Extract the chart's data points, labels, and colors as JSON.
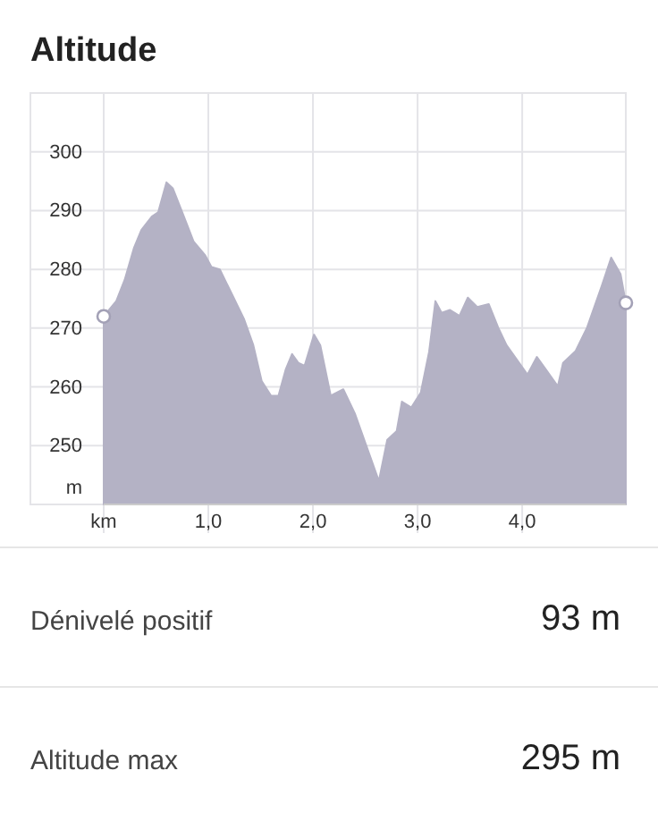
{
  "chart_data": {
    "type": "area",
    "title": "Altitude",
    "ylabel": "m",
    "xlim": [
      0,
      4.99
    ],
    "ylim": [
      240,
      310
    ],
    "xticks": [
      {
        "value": 0,
        "label": "km"
      },
      {
        "value": 1,
        "label": "1,0"
      },
      {
        "value": 2,
        "label": "2,0"
      },
      {
        "value": 3,
        "label": "3,0"
      },
      {
        "value": 4,
        "label": "4,0"
      }
    ],
    "yticks": [
      250,
      260,
      270,
      280,
      290,
      300
    ],
    "grid": true,
    "series": [
      {
        "color": "#b4b2c5",
        "x": [
          0,
          0.12,
          0.2,
          0.29,
          0.36,
          0.46,
          0.52,
          0.6,
          0.66,
          0.74,
          0.86,
          0.97,
          1.03,
          1.11,
          1.23,
          1.34,
          1.43,
          1.51,
          1.6,
          1.67,
          1.74,
          1.8,
          1.86,
          1.92,
          2.01,
          2.07,
          2.17,
          2.29,
          2.4,
          2.51,
          2.63,
          2.71,
          2.8,
          2.85,
          2.94,
          3.03,
          3.11,
          3.17,
          3.23,
          3.31,
          3.4,
          3.48,
          3.57,
          3.68,
          3.77,
          3.85,
          3.97,
          4.05,
          4.14,
          4.22,
          4.34,
          4.39,
          4.51,
          4.62,
          4.76,
          4.85,
          4.94,
          4.99
        ],
        "values": [
          272,
          274.6,
          278.2,
          283.7,
          286.7,
          289,
          289.7,
          294.8,
          293.8,
          290.2,
          284.7,
          282.4,
          280.4,
          280,
          275.6,
          271.6,
          267.1,
          261,
          258.5,
          258.5,
          263,
          265.6,
          264.1,
          263.6,
          268.9,
          267.1,
          258.5,
          259.6,
          255.5,
          250,
          244,
          251,
          252.5,
          257.5,
          256.5,
          259,
          266,
          274.6,
          272.6,
          273.1,
          272.1,
          275.2,
          273.6,
          274.1,
          270.1,
          267.1,
          264.1,
          262.1,
          265.1,
          263.1,
          260.1,
          264.1,
          266.1,
          270.1,
          277.2,
          282,
          279.2,
          274.3
        ]
      },
      {
        "type": "scatter",
        "color": "#ffffff",
        "marker": "circle",
        "x": [
          0,
          4.99
        ],
        "values": [
          272,
          274.3
        ]
      }
    ],
    "annotations": [
      "Dénivelé positif",
      "93 m",
      "Altitude max",
      "295 m"
    ]
  }
}
